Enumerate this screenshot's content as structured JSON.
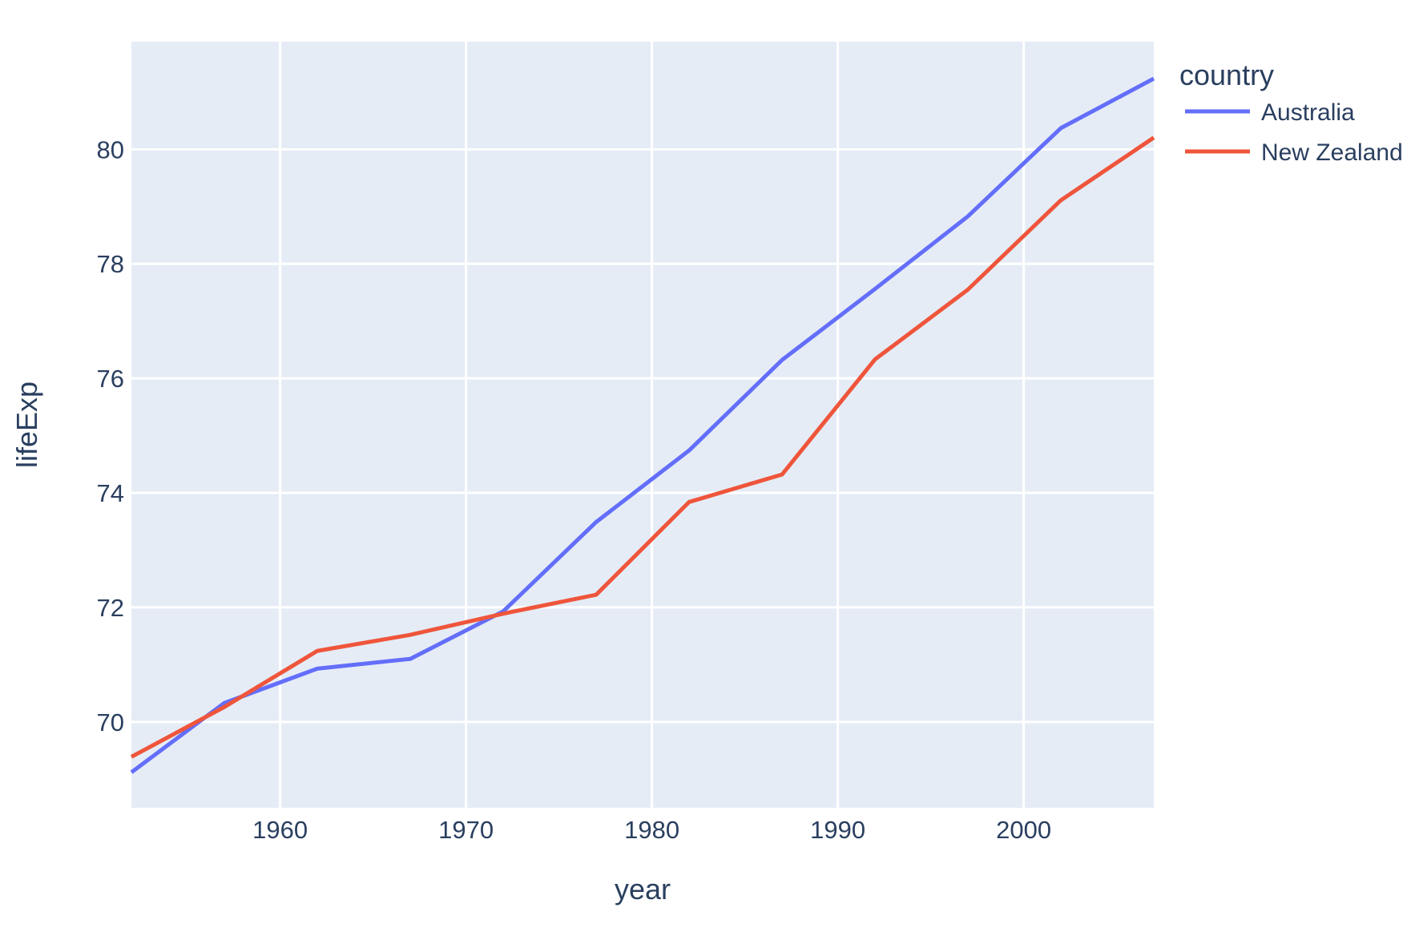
{
  "figure": {
    "page_background": "#ffffff",
    "plot_background": "#E5ECF6",
    "grid_color": "#ffffff",
    "text_color": "#2a3f5f"
  },
  "chart_data": {
    "type": "line",
    "title": "",
    "xlabel": "year",
    "ylabel": "lifeExp",
    "legend_title": "country",
    "legend_position": "right-top-outside",
    "grid": true,
    "xlim": [
      1952,
      2007
    ],
    "ylim": [
      68.5,
      81.88
    ],
    "xticks": [
      1960,
      1970,
      1980,
      1990,
      2000
    ],
    "yticks": [
      70,
      72,
      74,
      76,
      78,
      80
    ],
    "x": [
      1952,
      1957,
      1962,
      1967,
      1972,
      1977,
      1982,
      1987,
      1992,
      1997,
      2002,
      2007
    ],
    "series": [
      {
        "name": "Australia",
        "color": "#636EFA",
        "values": [
          69.12,
          70.33,
          70.93,
          71.1,
          71.93,
          73.49,
          74.74,
          76.32,
          77.56,
          78.83,
          80.37,
          81.235
        ]
      },
      {
        "name": "New Zealand",
        "color": "#EF553B",
        "values": [
          69.39,
          70.26,
          71.24,
          71.52,
          71.89,
          72.22,
          73.84,
          74.32,
          76.33,
          77.55,
          79.11,
          80.204
        ]
      }
    ]
  }
}
